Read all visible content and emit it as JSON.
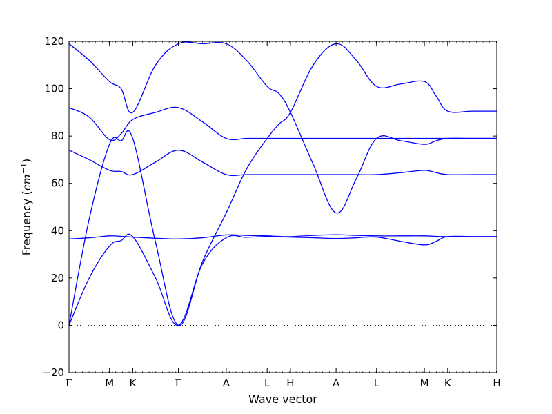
{
  "chart_data": {
    "type": "line",
    "title": "",
    "xlabel": "Wave vector",
    "ylabel": {
      "text": "Frequency (",
      "unit_base": "cm",
      "unit_exp": "−1",
      "close": ")"
    },
    "ylim": [
      -20,
      120
    ],
    "yticks": [
      "−20",
      "0",
      "20",
      "40",
      "60",
      "80",
      "100",
      "120"
    ],
    "ytick_values": [
      -20,
      0,
      20,
      40,
      60,
      80,
      100,
      120
    ],
    "xlim": [
      0,
      9.93
    ],
    "kpoints": [
      {
        "label": "Γ",
        "x": 0.0
      },
      {
        "label": "M",
        "x": 0.94
      },
      {
        "label": "K",
        "x": 1.48
      },
      {
        "label": "Γ",
        "x": 2.54
      },
      {
        "label": "A",
        "x": 3.65
      },
      {
        "label": "L",
        "x": 4.6
      },
      {
        "label": "H",
        "x": 5.14
      },
      {
        "label": "A",
        "x": 6.2
      },
      {
        "label": "L",
        "x": 7.14
      },
      {
        "label": "M",
        "x": 8.25
      },
      {
        "label": "K",
        "x": 8.79
      },
      {
        "label": "H",
        "x": 9.93
      }
    ],
    "zero_line": 0,
    "grid": false,
    "legend": "none",
    "line_color": "#0000ff",
    "branches": [
      {
        "name": "",
        "x": [
          0,
          0.47,
          0.94,
          1.21,
          1.48,
          2.01,
          2.54,
          3.1,
          3.65,
          4.12,
          4.6,
          4.87,
          5.14,
          5.67,
          6.2,
          6.67,
          7.14,
          7.7,
          8.25,
          8.52,
          8.79,
          9.36,
          9.93
        ],
        "y": [
          0,
          20,
          33.5,
          35.8,
          37.5,
          20,
          0,
          26,
          37,
          37.2,
          37.5,
          37.4,
          37.3,
          37,
          36.7,
          37,
          37.3,
          35.5,
          34,
          35.5,
          37.5,
          37.5,
          37.5
        ]
      },
      {
        "name": "",
        "x": [
          0,
          0.47,
          0.94,
          1.21,
          1.48,
          2.01,
          2.54,
          3.1,
          3.65,
          4.12,
          4.6,
          4.87,
          5.14,
          5.67,
          6.2,
          6.67,
          7.14,
          7.7,
          8.25,
          8.52,
          8.79,
          9.36,
          9.93
        ],
        "y": [
          36.5,
          37,
          37.8,
          37.6,
          37.3,
          36.8,
          36.5,
          37,
          38.2,
          38,
          37.8,
          37.6,
          37.5,
          38,
          38.3,
          38,
          37.8,
          37.8,
          37.8,
          37.6,
          37.5,
          37.5,
          37.5
        ]
      },
      {
        "name": "",
        "x": [
          0,
          0.47,
          0.94,
          1.21,
          1.48,
          2.01,
          2.54,
          3.1,
          3.65,
          4.12,
          4.6,
          4.87,
          5.14,
          5.67,
          6.2,
          6.67,
          7.14,
          7.7,
          8.25,
          8.52,
          8.79,
          9.36,
          9.93
        ],
        "y": [
          0,
          45,
          76.5,
          78,
          79,
          35,
          0,
          27,
          47.5,
          66,
          79,
          85,
          90,
          110,
          119,
          112,
          101,
          102,
          103,
          97,
          90.5,
          90.5,
          90.5
        ]
      },
      {
        "name": "",
        "x": [
          0,
          0.47,
          0.94,
          1.21,
          1.48,
          2.01,
          2.54,
          3.1,
          3.65,
          4.12,
          4.6,
          4.87,
          5.14,
          5.67,
          6.2,
          6.67,
          7.14,
          7.7,
          8.25,
          8.52,
          8.79,
          9.36,
          9.93
        ],
        "y": [
          74,
          70,
          65.5,
          65,
          63.7,
          69,
          74,
          69,
          63.7,
          63.7,
          63.7,
          63.7,
          63.7,
          63.7,
          63.7,
          63.7,
          63.7,
          64.5,
          65.5,
          64.5,
          63.7,
          63.7,
          63.7
        ]
      },
      {
        "name": "",
        "x": [
          0,
          0.47,
          0.94,
          1.21,
          1.48,
          2.01,
          2.54,
          3.1,
          3.65,
          4.12,
          4.6,
          4.87,
          5.14,
          5.67,
          6.2,
          6.67,
          7.14,
          7.7,
          8.25,
          8.52,
          8.79,
          9.36,
          9.93
        ],
        "y": [
          92,
          88,
          78.5,
          81,
          87,
          90,
          92,
          86,
          79,
          79,
          79,
          79,
          79,
          79,
          79,
          79,
          79,
          79,
          79,
          79,
          79,
          79,
          79
        ]
      },
      {
        "name": "",
        "x": [
          0,
          0.47,
          0.94,
          1.21,
          1.48,
          2.01,
          2.54,
          3.1,
          3.65,
          4.12,
          4.6,
          4.87,
          5.14,
          5.67,
          6.2,
          6.67,
          7.14,
          7.7,
          8.25,
          8.52,
          8.79,
          9.36,
          9.93
        ],
        "y": [
          119,
          112,
          103,
          100,
          90,
          110,
          119,
          119,
          119,
          112,
          101,
          98,
          90,
          68,
          47.5,
          62,
          79,
          78,
          76.5,
          78,
          79,
          79,
          79
        ]
      }
    ]
  }
}
